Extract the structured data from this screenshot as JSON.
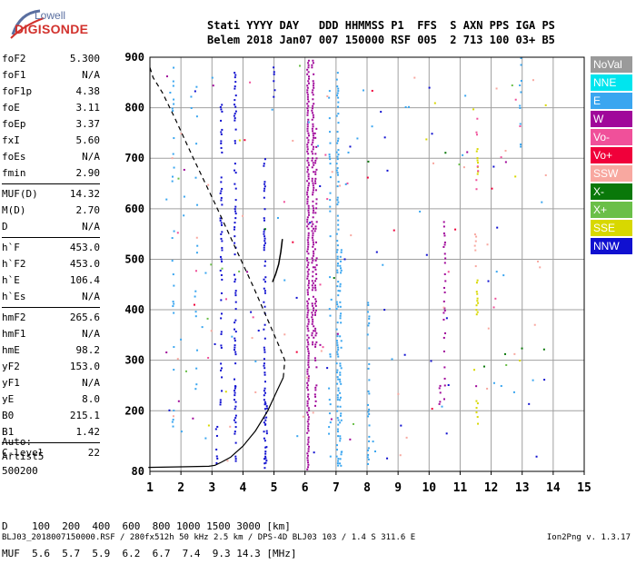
{
  "logo": {
    "line1": "Lowell",
    "line2": "DIGISONDE"
  },
  "header": {
    "labels": [
      "Stati",
      "YYYY",
      "DAY",
      "DDD",
      "HHMMSS",
      "P1",
      "FFS",
      "S",
      "AXN",
      "PPS",
      "IGA",
      "PS"
    ],
    "values": [
      "Belem",
      "2018",
      "Jan07",
      "007",
      "150000",
      "RSF",
      "005",
      "2",
      "713",
      "100",
      "03+",
      "B5"
    ]
  },
  "params": {
    "group1": [
      {
        "name": "foF2",
        "value": "5.300"
      },
      {
        "name": "foF1",
        "value": "N/A"
      },
      {
        "name": "foF1p",
        "value": "4.38"
      },
      {
        "name": "foE",
        "value": "3.11"
      },
      {
        "name": "foEp",
        "value": "3.37"
      },
      {
        "name": "fxI",
        "value": "5.60"
      },
      {
        "name": "foEs",
        "value": "N/A"
      },
      {
        "name": "fmin",
        "value": "2.90"
      }
    ],
    "group2": [
      {
        "name": "MUF(D)",
        "value": "14.32"
      },
      {
        "name": "M(D)",
        "value": "2.70"
      },
      {
        "name": "D",
        "value": "N/A"
      }
    ],
    "group3": [
      {
        "name": "h`F",
        "value": "453.0"
      },
      {
        "name": "h`F2",
        "value": "453.0"
      },
      {
        "name": "h`E",
        "value": "106.4"
      },
      {
        "name": "h`Es",
        "value": "N/A"
      }
    ],
    "group4": [
      {
        "name": "hmF2",
        "value": "265.6"
      },
      {
        "name": "hmF1",
        "value": "N/A"
      },
      {
        "name": "hmE",
        "value": "98.2"
      },
      {
        "name": "yF2",
        "value": "153.0"
      },
      {
        "name": "yF1",
        "value": "N/A"
      },
      {
        "name": "yE",
        "value": "8.0"
      },
      {
        "name": "B0",
        "value": "215.1"
      },
      {
        "name": "B1",
        "value": "1.42"
      }
    ],
    "group5": [
      {
        "name": "C-level",
        "value": "22"
      }
    ]
  },
  "auto": {
    "line1": "Auto:",
    "line2": "Artist5",
    "line3": "500200"
  },
  "legend": [
    {
      "label": "NoVal",
      "color": "#9a9a9a"
    },
    {
      "label": "NNE",
      "color": "#00e5ee"
    },
    {
      "label": "E",
      "color": "#3aa6f0"
    },
    {
      "label": "W",
      "color": "#a0089a"
    },
    {
      "label": "Vo-",
      "color": "#f0509a"
    },
    {
      "label": "Vo+",
      "color": "#f0003a"
    },
    {
      "label": "SSW",
      "color": "#f8a8a0"
    },
    {
      "label": "X-",
      "color": "#0a780a"
    },
    {
      "label": "X+",
      "color": "#6abf48"
    },
    {
      "label": "SSE",
      "color": "#d8d800"
    },
    {
      "label": "NNW",
      "color": "#1010d0"
    }
  ],
  "chart_data": {
    "type": "scatter",
    "xlim": [
      1,
      15
    ],
    "ylim": [
      80,
      900
    ],
    "xticks": [
      "1",
      "2",
      "3",
      "4",
      "5",
      "6",
      "7",
      "8",
      "9",
      "10",
      "11",
      "12",
      "13",
      "14",
      "15"
    ],
    "yticks": [
      "80",
      "200",
      "300",
      "400",
      "500",
      "600",
      "700",
      "800",
      "900"
    ],
    "grid": true,
    "profile_solid": [
      [
        0.95,
        88
      ],
      [
        2.0,
        89
      ],
      [
        2.9,
        90
      ],
      [
        3.1,
        92
      ],
      [
        3.3,
        98
      ],
      [
        3.6,
        108
      ],
      [
        4.0,
        130
      ],
      [
        4.4,
        160
      ],
      [
        4.8,
        200
      ],
      [
        5.1,
        240
      ],
      [
        5.3,
        266
      ]
    ],
    "profile_dashed": [
      [
        5.3,
        266
      ],
      [
        5.35,
        300
      ],
      [
        5.15,
        330
      ],
      [
        4.8,
        380
      ],
      [
        4.3,
        450
      ],
      [
        3.7,
        530
      ],
      [
        3.1,
        610
      ],
      [
        2.4,
        700
      ],
      [
        1.8,
        780
      ],
      [
        1.4,
        830
      ],
      [
        1.1,
        860
      ],
      [
        1.0,
        880
      ]
    ],
    "trace_black": [
      [
        4.95,
        455
      ],
      [
        5.05,
        470
      ],
      [
        5.15,
        490
      ],
      [
        5.22,
        515
      ],
      [
        5.27,
        540
      ]
    ],
    "trace_groups": [
      {
        "name": "NNW",
        "color": "#1010d0",
        "x": 3.15,
        "y0": 85,
        "y1": 170,
        "density": 0.5
      },
      {
        "name": "NNW",
        "color": "#1010d0",
        "x": 3.3,
        "y0": 210,
        "y1": 830,
        "density": 0.35
      },
      {
        "name": "NNW",
        "color": "#1010d0",
        "x": 3.75,
        "y0": 90,
        "y1": 880,
        "density": 0.5
      },
      {
        "name": "NNW",
        "color": "#1010d0",
        "x": 4.7,
        "y0": 85,
        "y1": 700,
        "density": 0.55
      },
      {
        "name": "NNW",
        "color": "#1010d0",
        "x": 4.75,
        "y0": 90,
        "y1": 220,
        "density": 0.4
      },
      {
        "name": "NNW",
        "color": "#1010d0",
        "x": 5.0,
        "y0": 820,
        "y1": 895,
        "density": 0.5
      },
      {
        "name": "W",
        "color": "#a0089a",
        "x": 6.1,
        "y0": 85,
        "y1": 895,
        "density": 0.95
      },
      {
        "name": "W",
        "color": "#a0089a",
        "x": 6.25,
        "y0": 330,
        "y1": 895,
        "density": 0.75
      },
      {
        "name": "W",
        "color": "#a0089a",
        "x": 6.35,
        "y0": 200,
        "y1": 760,
        "density": 0.5
      },
      {
        "name": "W",
        "color": "#a0089a",
        "x": 10.5,
        "y0": 200,
        "y1": 580,
        "density": 0.35
      },
      {
        "name": "W",
        "color": "#a0089a",
        "x": 10.35,
        "y0": 210,
        "y1": 260,
        "density": 0.6
      },
      {
        "name": "E",
        "color": "#3aa6f0",
        "x": 7.05,
        "y0": 85,
        "y1": 880,
        "density": 0.6
      },
      {
        "name": "E",
        "color": "#3aa6f0",
        "x": 7.15,
        "y0": 90,
        "y1": 520,
        "density": 0.45
      },
      {
        "name": "E",
        "color": "#3aa6f0",
        "x": 8.05,
        "y0": 85,
        "y1": 420,
        "density": 0.4
      },
      {
        "name": "E",
        "color": "#3aa6f0",
        "x": 1.75,
        "y0": 150,
        "y1": 890,
        "density": 0.18
      },
      {
        "name": "E",
        "color": "#3aa6f0",
        "x": 2.5,
        "y0": 210,
        "y1": 870,
        "density": 0.12
      },
      {
        "name": "E",
        "color": "#3aa6f0",
        "x": 6.8,
        "y0": 100,
        "y1": 880,
        "density": 0.12
      },
      {
        "name": "E",
        "color": "#3aa6f0",
        "x": 12.95,
        "y0": 700,
        "y1": 900,
        "density": 0.2
      },
      {
        "name": "SSE",
        "color": "#d8d800",
        "x": 11.55,
        "y0": 380,
        "y1": 460,
        "density": 0.55
      },
      {
        "name": "SSE",
        "color": "#d8d800",
        "x": 11.55,
        "y0": 670,
        "y1": 720,
        "density": 0.5
      },
      {
        "name": "SSE",
        "color": "#d8d800",
        "x": 11.55,
        "y0": 170,
        "y1": 230,
        "density": 0.3
      },
      {
        "name": "SSW",
        "color": "#f8a8a0",
        "x": 11.5,
        "y0": 470,
        "y1": 560,
        "density": 0.25
      },
      {
        "name": "Vo-",
        "color": "#f0509a",
        "x": 11.55,
        "y0": 640,
        "y1": 780,
        "density": 0.15
      },
      {
        "name": "X+",
        "color": "#6abf48",
        "x": 12.7,
        "y0": 842,
        "y1": 846,
        "density": 1.0
      }
    ],
    "scatter_seed": 7,
    "scatter_counts": {
      "SSW": 40,
      "Vo-": 18,
      "Vo+": 10,
      "X-": 8,
      "X+": 10,
      "E": 45,
      "NNW": 35,
      "W": 15,
      "SSE": 10
    }
  },
  "bottom": {
    "d_label": "D",
    "d_values": "    100  200  400  600  800 1000 1500 3000 [km]",
    "muf_label": "MUF",
    "muf_values": "  5.6  5.7  5.9  6.2  6.7  7.4  9.3 14.3 [MHz]"
  },
  "footer": {
    "left": "BLJ03_2018007150000.RSF / 280fx512h 50 kHz 2.5 km / DPS-4D BLJ03 103 / 1.4 S 311.6 E",
    "version": "Ion2Png v. 1.3.17"
  }
}
